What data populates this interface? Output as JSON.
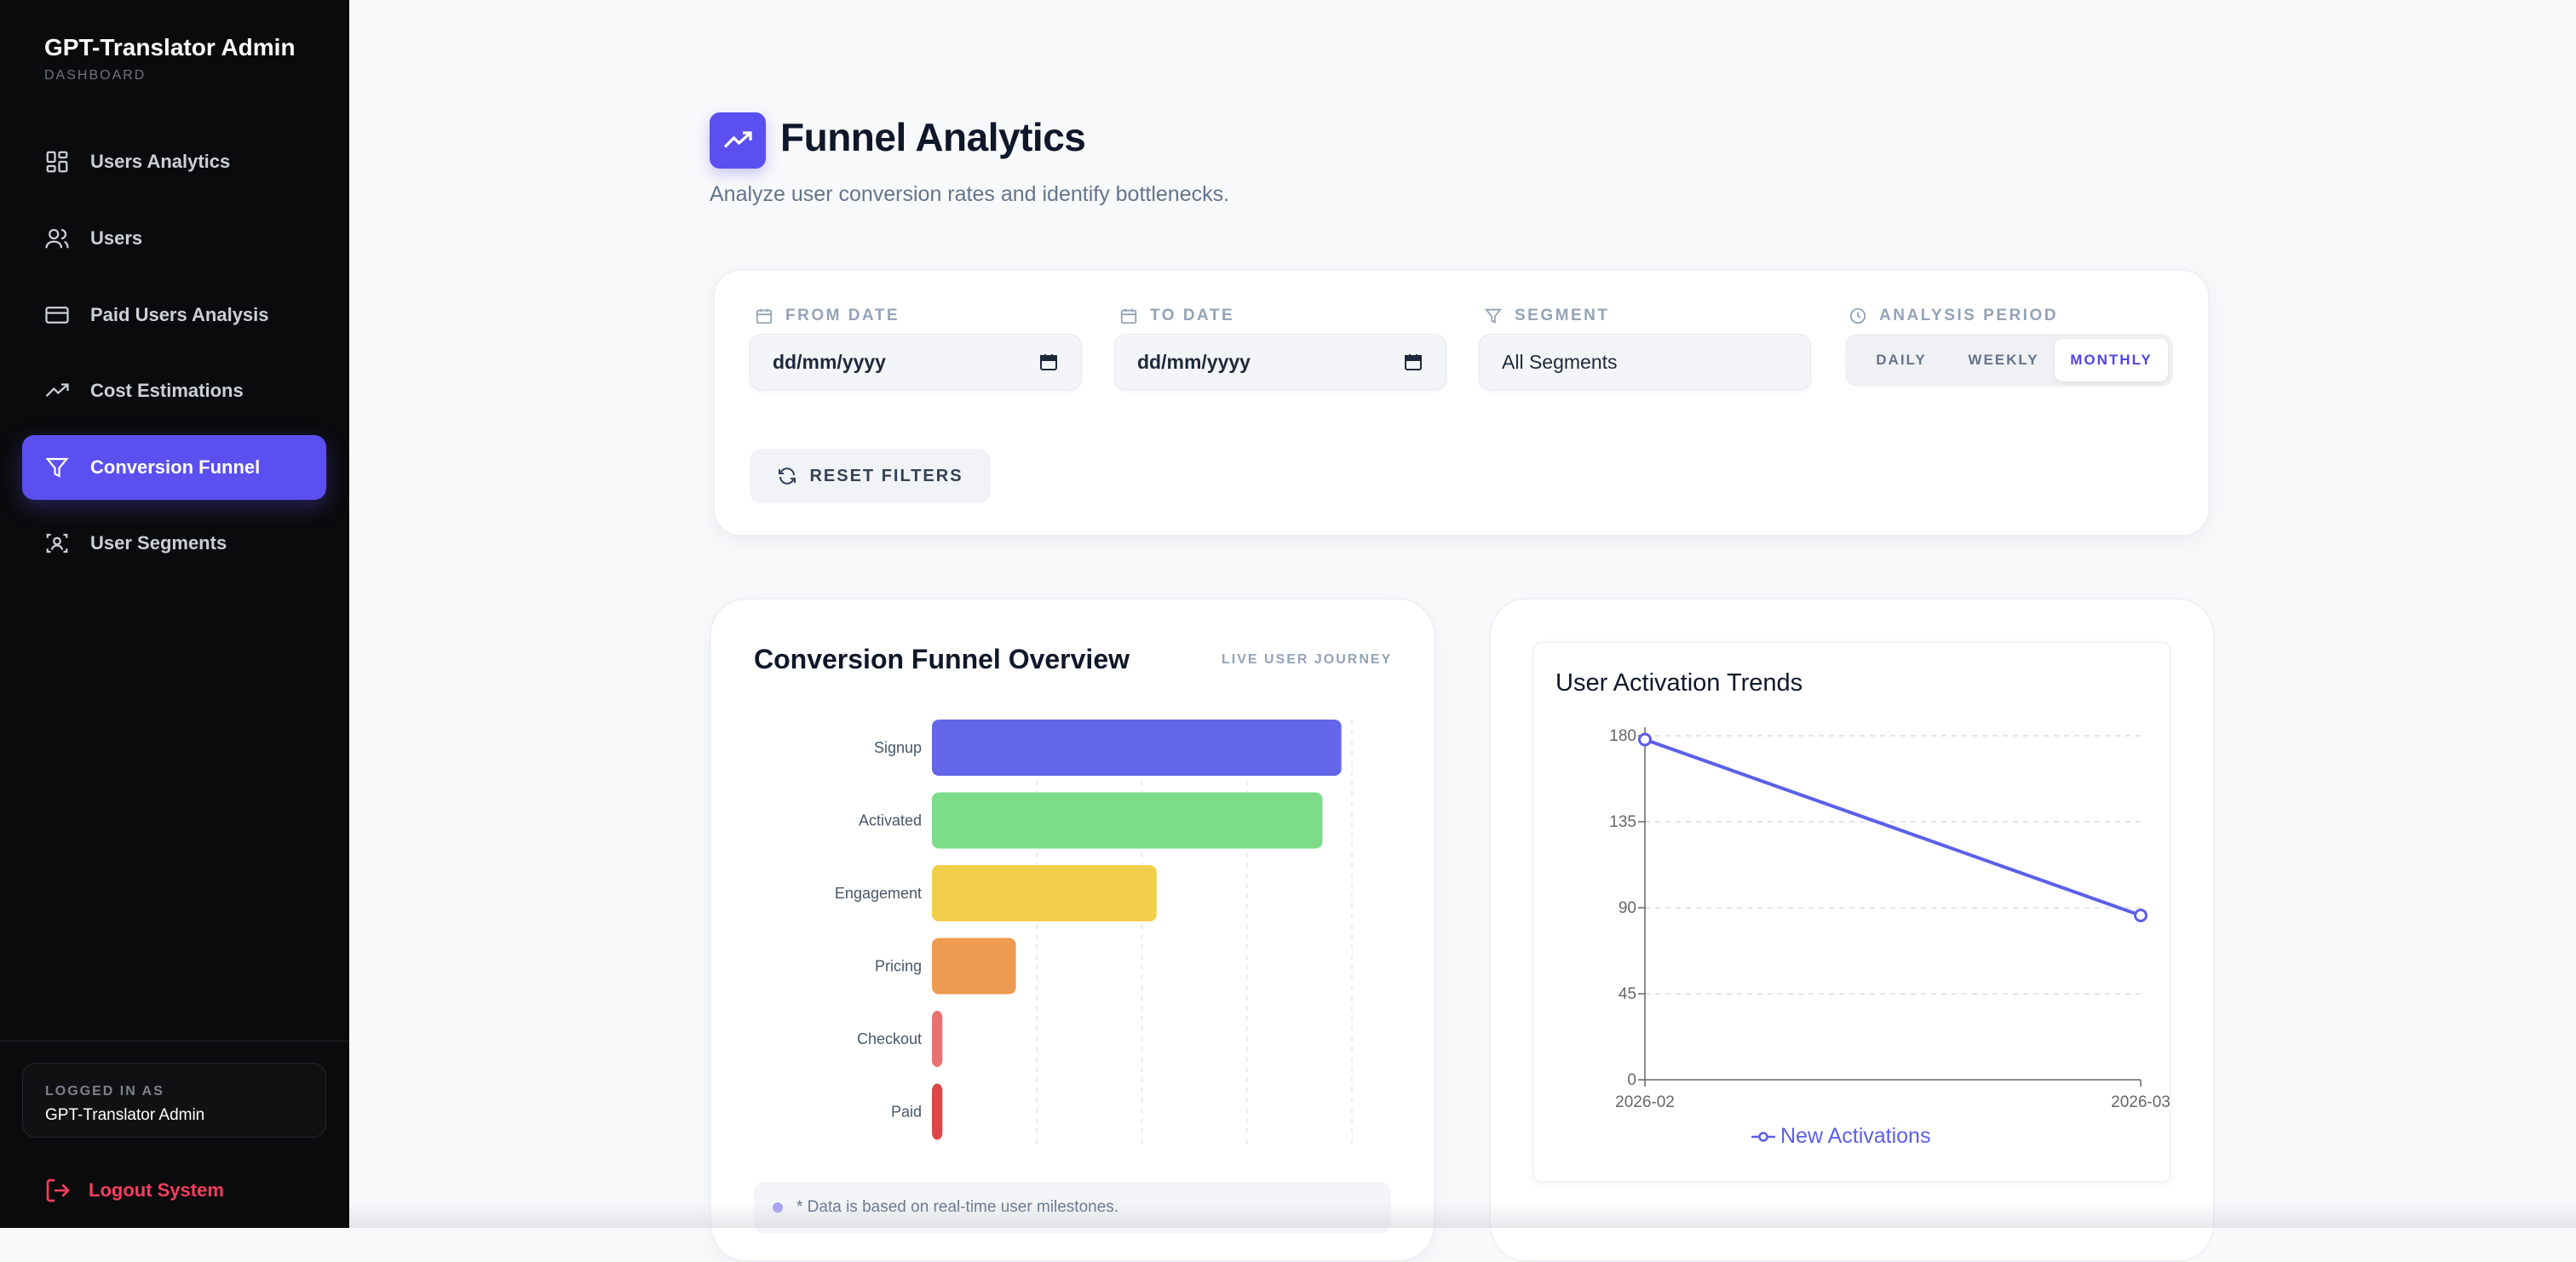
{
  "sidebar": {
    "title": "GPT-Translator Admin",
    "subtitle": "DASHBOARD",
    "items": [
      {
        "label": "Users Analytics",
        "icon": "grid-icon"
      },
      {
        "label": "Users",
        "icon": "users-icon"
      },
      {
        "label": "Paid Users Analysis",
        "icon": "credit-card-icon"
      },
      {
        "label": "Cost Estimations",
        "icon": "trending-up-icon"
      },
      {
        "label": "Conversion Funnel",
        "icon": "filter-icon",
        "active": true
      },
      {
        "label": "User Segments",
        "icon": "scan-user-icon"
      }
    ],
    "logged_in_label": "LOGGED IN AS",
    "logged_in_name": "GPT-Translator Admin",
    "logout_label": "Logout System"
  },
  "header": {
    "title": "Funnel Analytics",
    "subtitle": "Analyze user conversion rates and identify bottlenecks."
  },
  "filters": {
    "from_label": "FROM DATE",
    "from_value": "dd/mm/yyyy",
    "to_label": "TO DATE",
    "to_value": "dd/mm/yyyy",
    "segment_label": "SEGMENT",
    "segment_value": "All Segments",
    "period_label": "ANALYSIS PERIOD",
    "period_options": [
      "DAILY",
      "WEEKLY",
      "MONTHLY"
    ],
    "period_selected": "MONTHLY",
    "reset_label": "RESET FILTERS"
  },
  "funnel": {
    "title": "Conversion Funnel Overview",
    "badge": "LIVE USER JOURNEY",
    "note": "* Data is based on real-time user milestones."
  },
  "activation": {
    "title": "User Activation Trends",
    "legend": "New Activations"
  },
  "colors": {
    "accent": "#5b4ff0",
    "signup": "#6366e8",
    "activated": "#7ddc8a",
    "engagement": "#f2cf4a",
    "pricing": "#ee9a50",
    "checkout": "#e87272",
    "paid": "#dc4848",
    "line": "#5b5fe8"
  },
  "chart_data": [
    {
      "type": "bar",
      "orientation": "horizontal",
      "title": "Conversion Funnel Overview",
      "categories": [
        "Signup",
        "Activated",
        "Engagement",
        "Pricing",
        "Checkout",
        "Paid"
      ],
      "values": [
        195,
        186,
        107,
        40,
        5,
        5
      ],
      "xlim": [
        0,
        200
      ],
      "grid": true
    },
    {
      "type": "line",
      "title": "User Activation Trends",
      "x": [
        "2026-02",
        "2026-03"
      ],
      "series": [
        {
          "name": "New Activations",
          "values": [
            178,
            86
          ]
        }
      ],
      "ylim": [
        0,
        180
      ],
      "yticks": [
        0,
        45,
        90,
        135,
        180
      ],
      "grid": true,
      "legend": "bottom"
    }
  ]
}
